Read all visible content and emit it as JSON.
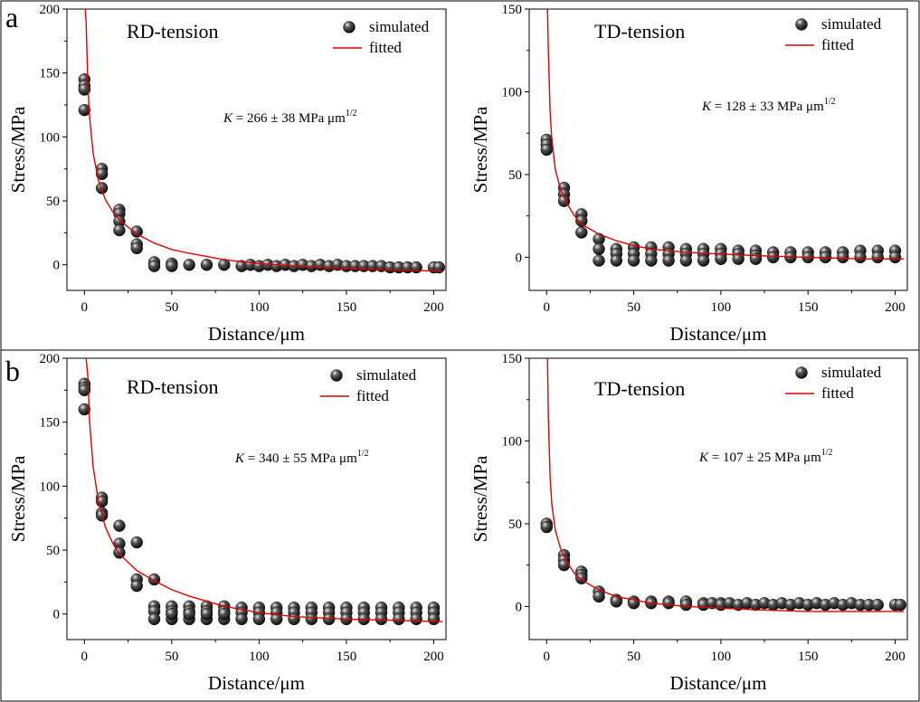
{
  "panel_labels": [
    "a",
    "b"
  ],
  "colors": {
    "simulated": "#111111",
    "fitted": "#e00000",
    "frame": "#000000"
  },
  "chart_data": [
    {
      "type": "scatter",
      "row": "a",
      "title": "RD-tension",
      "xlabel": "Distance/μm",
      "ylabel": "Stress/MPa",
      "xlim": [
        -10,
        207
      ],
      "ylim": [
        -20,
        200
      ],
      "xticks": [
        0,
        50,
        100,
        150,
        200
      ],
      "yticks": [
        0,
        50,
        100,
        150,
        200
      ],
      "legend": [
        "simulated",
        "fitted"
      ],
      "legend_position": "top-right",
      "annotation": {
        "var": "K",
        "text": " = 266 ± 38 MPa μm",
        "sup": "1/2"
      },
      "series": [
        {
          "name": "simulated",
          "kind": "points",
          "x": [
            0,
            0,
            0,
            0,
            10,
            10,
            10,
            20,
            20,
            20,
            20,
            30,
            30,
            30,
            40,
            40,
            50,
            50,
            60,
            70,
            80,
            90,
            95,
            100,
            105,
            110,
            115,
            120,
            125,
            130,
            135,
            140,
            145,
            150,
            155,
            160,
            165,
            170,
            175,
            180,
            185,
            190,
            200,
            203
          ],
          "y": [
            145,
            140,
            137,
            121,
            75,
            71,
            60,
            43,
            40,
            34,
            27,
            26,
            16,
            13,
            2,
            -1,
            1,
            -1,
            0,
            0,
            0,
            -1,
            0,
            -1,
            0,
            -1,
            0,
            -1,
            0,
            -1,
            0,
            -1,
            0,
            -1,
            -1,
            -1,
            -1,
            -1,
            -2,
            -2,
            -2,
            -2,
            -2,
            -2
          ]
        },
        {
          "name": "fitted",
          "kind": "line",
          "x": [
            0.5,
            1,
            2,
            3,
            5,
            8,
            12,
            16,
            20,
            30,
            40,
            50,
            60,
            80,
            100,
            120,
            150,
            180,
            205
          ],
          "y": [
            200,
            190,
            140,
            115,
            87,
            66,
            51,
            42,
            35,
            24,
            17,
            12,
            9,
            4,
            1,
            -1,
            -3,
            -4,
            -5
          ]
        }
      ]
    },
    {
      "type": "scatter",
      "row": "a",
      "title": "TD-tension",
      "xlabel": "Distance/μm",
      "ylabel": "Stress/MPa",
      "xlim": [
        -10,
        207
      ],
      "ylim": [
        -20,
        150
      ],
      "xticks": [
        0,
        50,
        100,
        150,
        200
      ],
      "yticks": [
        0,
        50,
        100,
        150
      ],
      "legend": [
        "simulated",
        "fitted"
      ],
      "legend_position": "top-right",
      "annotation": {
        "var": "K",
        "text": " = 128 ± 33 MPa μm",
        "sup": "1/2"
      },
      "series": [
        {
          "name": "simulated",
          "kind": "points",
          "x": [
            0,
            0,
            0,
            10,
            10,
            10,
            20,
            20,
            20,
            30,
            30,
            30,
            40,
            40,
            40,
            50,
            50,
            50,
            60,
            60,
            60,
            70,
            70,
            70,
            80,
            80,
            80,
            90,
            90,
            90,
            100,
            100,
            100,
            110,
            110,
            110,
            120,
            120,
            120,
            130,
            130,
            140,
            140,
            150,
            150,
            160,
            160,
            170,
            170,
            180,
            180,
            190,
            190,
            200,
            200
          ],
          "y": [
            71,
            68,
            65,
            42,
            38,
            34,
            26,
            22,
            15,
            11,
            5,
            -2,
            5,
            2,
            -2,
            6,
            2,
            -2,
            6,
            2,
            -2,
            6,
            2,
            -2,
            5,
            2,
            -2,
            5,
            2,
            -2,
            5,
            2,
            -1,
            4,
            2,
            -1,
            4,
            1,
            -1,
            3,
            0,
            3,
            0,
            3,
            0,
            3,
            0,
            3,
            0,
            4,
            0,
            4,
            0,
            4,
            0
          ]
        },
        {
          "name": "fitted",
          "kind": "line",
          "x": [
            0.5,
            1,
            2,
            3,
            5,
            8,
            12,
            16,
            20,
            30,
            40,
            50,
            60,
            80,
            100,
            120,
            150,
            180,
            205
          ],
          "y": [
            150,
            125,
            88,
            71,
            53,
            41,
            32,
            25,
            20,
            14,
            10,
            7,
            5,
            3,
            2,
            1,
            0,
            -1,
            -1
          ]
        }
      ]
    },
    {
      "type": "scatter",
      "row": "b",
      "title": "RD-tension",
      "xlabel": "Distance/μm",
      "ylabel": "Stress/MPa",
      "xlim": [
        -10,
        207
      ],
      "ylim": [
        -20,
        200
      ],
      "xticks": [
        0,
        50,
        100,
        150,
        200
      ],
      "yticks": [
        0,
        50,
        100,
        150,
        200
      ],
      "legend": [
        "simulated",
        "fitted"
      ],
      "legend_position": "top-right",
      "annotation": {
        "var": "K",
        "text": " = 340 ± 55 MPa μm",
        "sup": "1/2"
      },
      "series": [
        {
          "name": "simulated",
          "kind": "points",
          "x": [
            0,
            0,
            0,
            0,
            10,
            10,
            10,
            10,
            20,
            20,
            20,
            30,
            30,
            30,
            40,
            40,
            40,
            40,
            50,
            50,
            50,
            50,
            60,
            60,
            60,
            60,
            70,
            70,
            70,
            70,
            80,
            80,
            80,
            80,
            90,
            90,
            90,
            100,
            100,
            100,
            110,
            110,
            110,
            120,
            120,
            120,
            130,
            130,
            130,
            140,
            140,
            140,
            150,
            150,
            150,
            160,
            160,
            160,
            170,
            170,
            170,
            180,
            180,
            180,
            190,
            190,
            190,
            200,
            200,
            200
          ],
          "y": [
            180,
            177,
            175,
            160,
            91,
            88,
            79,
            77,
            69,
            55,
            48,
            56,
            27,
            22,
            27,
            6,
            2,
            -4,
            6,
            2,
            -4,
            0,
            6,
            2,
            -4,
            0,
            6,
            2,
            -4,
            0,
            6,
            2,
            -4,
            0,
            5,
            1,
            -4,
            5,
            1,
            -4,
            5,
            1,
            -4,
            5,
            1,
            -4,
            5,
            1,
            -4,
            5,
            1,
            -4,
            5,
            1,
            -4,
            5,
            1,
            -4,
            5,
            1,
            -4,
            5,
            1,
            -4,
            5,
            1,
            -4,
            5,
            1,
            -4
          ]
        },
        {
          "name": "fitted",
          "kind": "line",
          "x": [
            0.5,
            1,
            2,
            3,
            5,
            8,
            12,
            16,
            20,
            30,
            40,
            50,
            60,
            80,
            100,
            120,
            150,
            180,
            205
          ],
          "y": [
            200,
            200,
            185,
            150,
            115,
            88,
            68,
            56,
            47,
            34,
            26,
            19,
            14,
            6,
            1,
            -2,
            -4,
            -5,
            -6
          ]
        }
      ]
    },
    {
      "type": "scatter",
      "row": "b",
      "title": "TD-tension",
      "xlabel": "Distance/μm",
      "ylabel": "Stress/MPa",
      "xlim": [
        -10,
        207
      ],
      "ylim": [
        -20,
        150
      ],
      "xticks": [
        0,
        50,
        100,
        150,
        200
      ],
      "yticks": [
        0,
        50,
        100,
        150
      ],
      "legend": [
        "simulated",
        "fitted"
      ],
      "legend_position": "top-right",
      "annotation": {
        "var": "K",
        "text": " = 107 ± 25 MPa μm",
        "sup": "1/2"
      },
      "series": [
        {
          "name": "simulated",
          "kind": "points",
          "x": [
            0,
            0,
            10,
            10,
            10,
            20,
            20,
            20,
            30,
            30,
            40,
            40,
            50,
            50,
            60,
            60,
            70,
            70,
            80,
            80,
            90,
            90,
            95,
            100,
            100,
            105,
            110,
            115,
            120,
            125,
            130,
            135,
            140,
            145,
            150,
            155,
            160,
            165,
            170,
            175,
            180,
            185,
            190,
            200,
            203
          ],
          "y": [
            50,
            48,
            31,
            28,
            25,
            21,
            19,
            17,
            9,
            6,
            4,
            3,
            3,
            2,
            3,
            2,
            3,
            2,
            3,
            1,
            2,
            1,
            2,
            2,
            1,
            2,
            1,
            2,
            1,
            2,
            1,
            2,
            1,
            2,
            1,
            2,
            1,
            2,
            1,
            2,
            1,
            1,
            1,
            1,
            1
          ]
        },
        {
          "name": "fitted",
          "kind": "line",
          "x": [
            0.5,
            1,
            2,
            3,
            5,
            8,
            12,
            16,
            20,
            30,
            40,
            50,
            60,
            80,
            100,
            120,
            150,
            180,
            205
          ],
          "y": [
            150,
            114,
            78,
            62,
            46,
            35,
            26,
            20,
            16,
            10,
            6,
            4,
            2,
            0,
            -1,
            -2,
            -3,
            -3,
            -3
          ]
        }
      ]
    }
  ]
}
